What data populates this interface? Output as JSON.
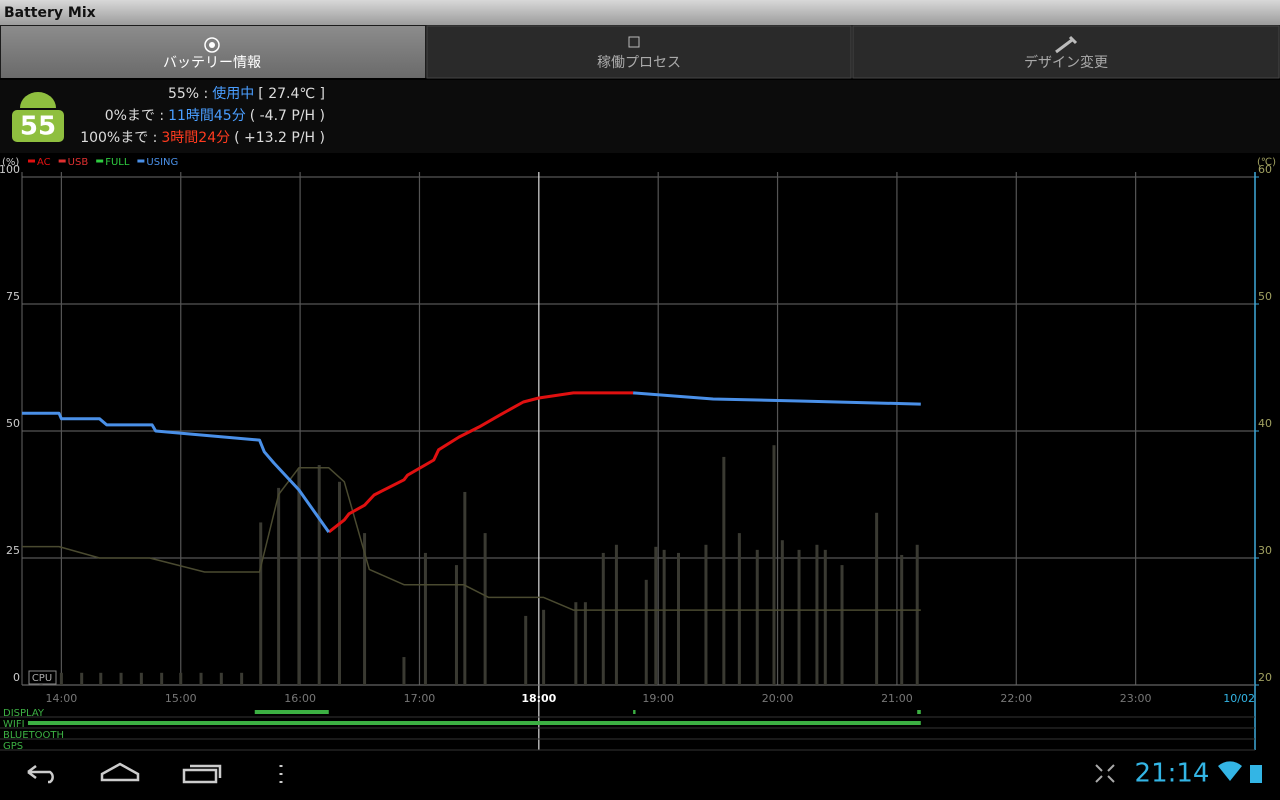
{
  "app": {
    "title": "Battery Mix"
  },
  "tabs": [
    "バッテリー情報",
    "稼働プロセス",
    "デザイン変更"
  ],
  "status": {
    "icon_level": "55",
    "lines": [
      {
        "label": "55% :",
        "value": "使用中",
        "detail": "[ 27.4℃ ]",
        "color": "#4a9eff"
      },
      {
        "label": "0%まで :",
        "value": "11時間45分",
        "detail": "( -4.7 P/H )",
        "color": "#4a9eff"
      },
      {
        "label": "100%まで :",
        "value": "3時間24分",
        "detail": "( +13.2 P/H )",
        "color": "#ff3b1f"
      }
    ]
  },
  "chart_data": {
    "type": "line",
    "ylabel": "(%)",
    "y2label": "(℃)",
    "xlim": [
      13.67,
      24.0
    ],
    "xticks": [
      {
        "value": 14,
        "label": "14:00"
      },
      {
        "value": 15,
        "label": "15:00"
      },
      {
        "value": 16,
        "label": "16:00"
      },
      {
        "value": 17,
        "label": "17:00"
      },
      {
        "value": 18,
        "label": "18:00"
      },
      {
        "value": 19,
        "label": "19:00"
      },
      {
        "value": 20,
        "label": "20:00"
      },
      {
        "value": 21,
        "label": "21:00"
      },
      {
        "value": 22,
        "label": "22:00"
      },
      {
        "value": 23,
        "label": "23:00"
      },
      {
        "value": 24,
        "label": "10/02"
      }
    ],
    "cursor_x": 18,
    "ylim": [
      0,
      100
    ],
    "yticks": [
      0,
      25,
      50,
      75,
      100
    ],
    "y2lim": [
      20,
      60
    ],
    "y2ticks": [
      20,
      30,
      40,
      50,
      60
    ],
    "grid": true,
    "x": [
      13.67,
      13.98,
      14.0,
      14.32,
      14.38,
      14.76,
      14.79,
      15.66,
      15.7,
      15.78,
      15.99,
      16.24,
      16.37,
      16.41,
      16.54,
      16.62,
      16.87,
      16.9,
      17.12,
      17.16,
      17.33,
      17.5,
      17.67,
      17.87,
      18.0,
      18.29,
      18.79,
      19.46,
      20.18,
      21.2
    ],
    "series": [
      {
        "name": "AC",
        "color": "#e01010",
        "values": [
          null,
          null,
          null,
          null,
          null,
          null,
          null,
          null,
          null,
          null,
          null,
          30.1,
          32.5,
          33.7,
          35.4,
          37.4,
          40.4,
          41.3,
          44.3,
          46.3,
          48.8,
          50.8,
          53.1,
          55.7,
          56.5,
          57.5,
          57.5,
          null,
          null,
          null
        ]
      },
      {
        "name": "USB",
        "color": "#e03030",
        "values": [
          null,
          null,
          null,
          null,
          null,
          null,
          null,
          null,
          null,
          null,
          null,
          null,
          null,
          null,
          null,
          null,
          null,
          null,
          null,
          null,
          null,
          null,
          null,
          null,
          null,
          null,
          null,
          null,
          null,
          null
        ]
      },
      {
        "name": "FULL",
        "color": "#2ecc40",
        "values": [
          null,
          null,
          null,
          null,
          null,
          null,
          null,
          null,
          null,
          null,
          null,
          null,
          null,
          null,
          null,
          null,
          null,
          null,
          null,
          null,
          null,
          null,
          null,
          null,
          null,
          null,
          null,
          null,
          null,
          null
        ]
      },
      {
        "name": "USING",
        "color": "#4a90e8",
        "values": [
          53.5,
          53.5,
          52.4,
          52.4,
          51.2,
          51.2,
          50.0,
          48.2,
          45.9,
          43.7,
          38.4,
          30.1,
          null,
          null,
          null,
          null,
          null,
          null,
          null,
          null,
          null,
          null,
          null,
          null,
          null,
          null,
          57.5,
          56.3,
          55.9,
          55.3
        ]
      },
      {
        "axis": "y2",
        "color": "#4a4a30",
        "x": [
          13.67,
          13.98,
          14.32,
          14.74,
          15.2,
          15.66,
          15.82,
          15.99,
          16.24,
          16.37,
          16.58,
          16.87,
          17.37,
          17.58,
          18.04,
          18.29,
          21.2
        ],
        "values": [
          30.9,
          30.9,
          30.0,
          30.0,
          28.9,
          28.9,
          35.0,
          37.1,
          37.1,
          36.0,
          29.1,
          27.9,
          27.9,
          26.9,
          26.9,
          25.9,
          25.9
        ]
      }
    ],
    "cpu": {
      "label": "CPU",
      "color": "#3a3a32",
      "x": [
        13.83,
        14.0,
        14.17,
        14.33,
        14.5,
        14.67,
        14.84,
        15.0,
        15.17,
        15.34,
        15.51,
        15.67,
        15.82,
        15.99,
        16.16,
        16.33,
        16.54,
        16.87,
        17.05,
        17.31,
        17.38,
        17.55,
        17.89,
        18.04,
        18.31,
        18.39,
        18.54,
        18.65,
        18.9,
        18.98,
        19.05,
        19.17,
        19.4,
        19.55,
        19.68,
        19.83,
        19.97,
        20.04,
        20.18,
        20.33,
        20.4,
        20.54,
        20.83,
        21.04,
        21.17
      ],
      "values": [
        2.4,
        2.4,
        2.4,
        2.4,
        2.4,
        2.4,
        2.4,
        2.4,
        2.4,
        2.4,
        2.4,
        32,
        38.8,
        42.7,
        43.3,
        40,
        29.9,
        5.5,
        26,
        23.6,
        38,
        29.9,
        13.6,
        14.8,
        16.3,
        16.3,
        26,
        27.6,
        20.7,
        27.2,
        26.6,
        26,
        27.6,
        44.9,
        29.9,
        26.6,
        47.2,
        28.5,
        26.6,
        27.6,
        26.6,
        23.6,
        33.9,
        25.6,
        27.6
      ]
    },
    "activity": [
      {
        "name": "DISPLAY",
        "on": [
          [
            15.62,
            16.24
          ],
          [
            18.79,
            18.81
          ],
          [
            21.17,
            21.2
          ]
        ]
      },
      {
        "name": "WIFI",
        "on": [
          [
            13.72,
            21.2
          ]
        ]
      },
      {
        "name": "BLUETOOTH"
      },
      {
        "name": "GPS"
      }
    ],
    "activity_color": "#3cb043"
  },
  "nav": {
    "clock": "21:14"
  }
}
